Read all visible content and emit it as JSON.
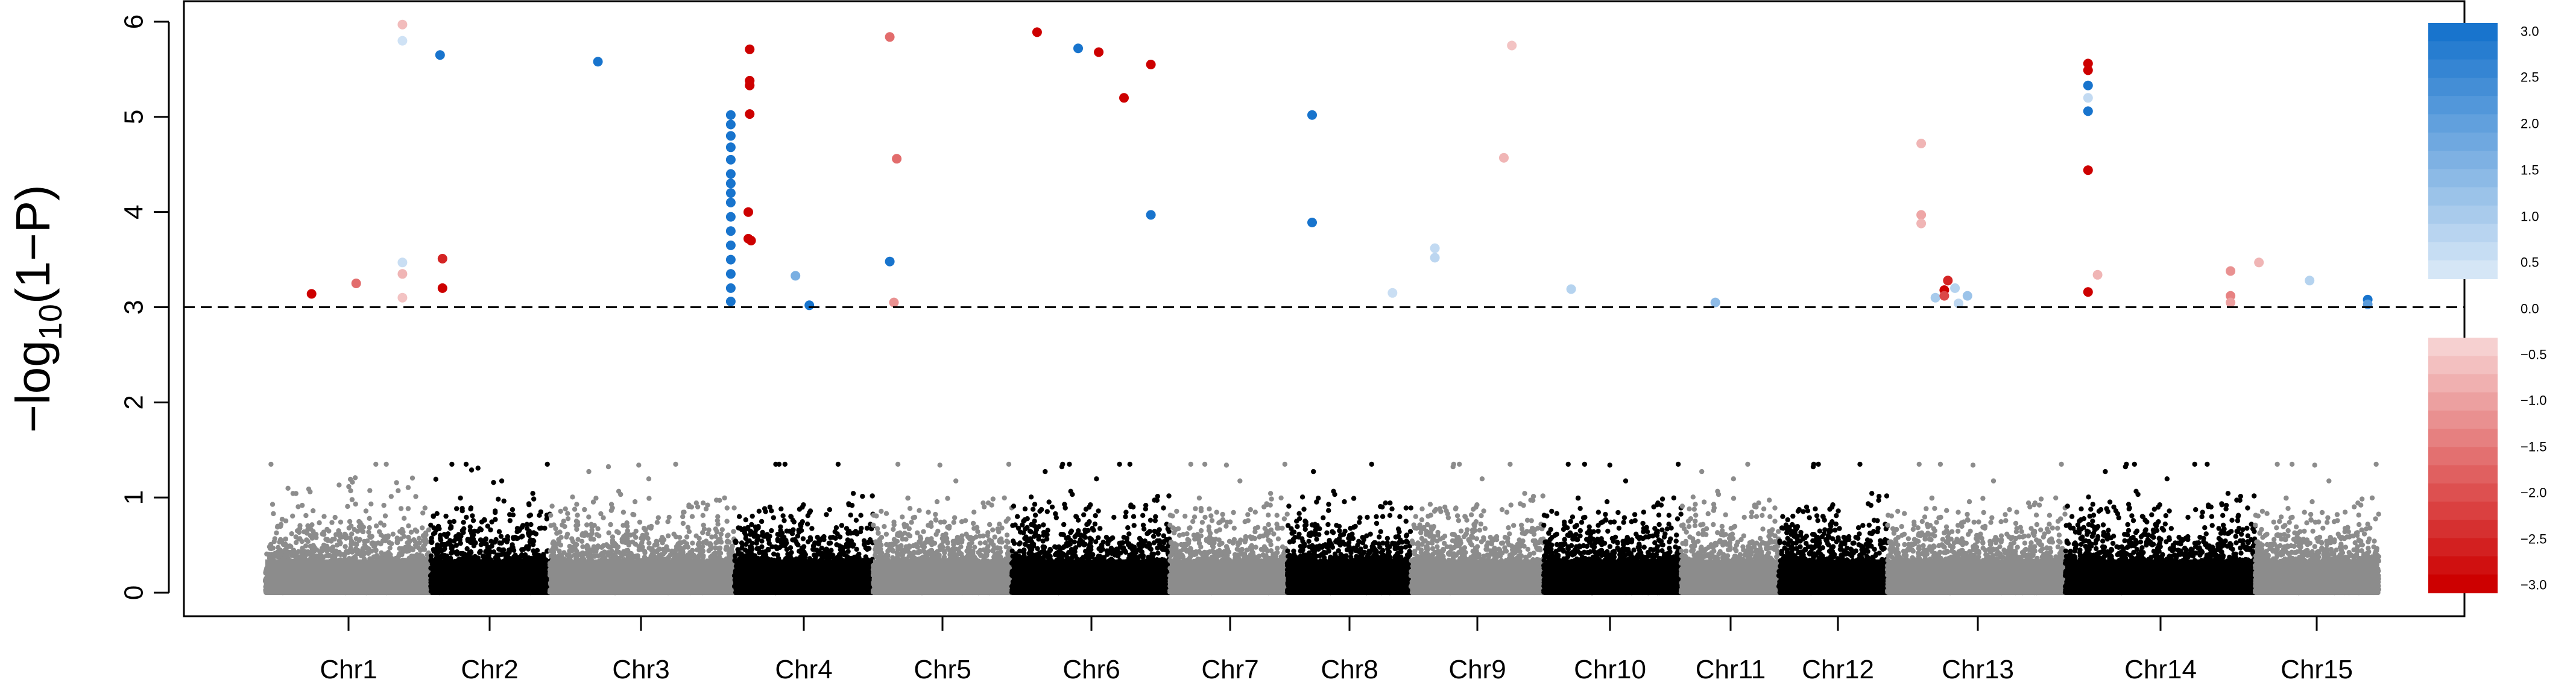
{
  "chart_data": {
    "type": "scatter",
    "title": "",
    "xlabel": "",
    "ylabel_main": "−log",
    "ylabel_sub": "10",
    "ylabel_tail": "(1−P)",
    "ylim": [
      0,
      6
    ],
    "yticks": [
      "0",
      "1",
      "2",
      "3",
      "4",
      "5",
      "6"
    ],
    "threshold": 3,
    "grid": false,
    "legend": "colorbar-right",
    "colors": {
      "chr_odd": "#8c8c8c",
      "chr_even": "#000000",
      "positive": "#1874cd",
      "negative": "#cd0000",
      "threshold_line": "#000000"
    },
    "colorbar": {
      "labels": [
        "3.0",
        "2.5",
        "2.0",
        "1.5",
        "1.0",
        "0.5",
        "0.0",
        "−0.5",
        "−1.0",
        "−1.5",
        "−2.0",
        "−2.5",
        "−3.0"
      ]
    },
    "chromosomes": [
      {
        "name": "Chr1",
        "start": 440,
        "end": 714,
        "tick": 578,
        "color": "odd",
        "max": 2.6
      },
      {
        "name": "Chr2",
        "start": 714,
        "end": 912,
        "tick": 812,
        "color": "even",
        "max": 2.8
      },
      {
        "name": "Chr3",
        "start": 912,
        "end": 1218,
        "tick": 1063,
        "color": "odd",
        "max": 2.6
      },
      {
        "name": "Chr4",
        "start": 1218,
        "end": 1448,
        "tick": 1333,
        "color": "even",
        "max": 2.9
      },
      {
        "name": "Chr5",
        "start": 1448,
        "end": 1678,
        "tick": 1563,
        "color": "odd",
        "max": 2.9
      },
      {
        "name": "Chr6",
        "start": 1678,
        "end": 1940,
        "tick": 1810,
        "color": "even",
        "max": 2.8
      },
      {
        "name": "Chr7",
        "start": 1940,
        "end": 2135,
        "tick": 2040,
        "color": "odd",
        "max": 2.6
      },
      {
        "name": "Chr8",
        "start": 2135,
        "end": 2340,
        "tick": 2238,
        "color": "even",
        "max": 2.8
      },
      {
        "name": "Chr9",
        "start": 2340,
        "end": 2560,
        "tick": 2450,
        "color": "odd",
        "max": 2.9
      },
      {
        "name": "Chr10",
        "start": 2560,
        "end": 2788,
        "tick": 2670,
        "color": "even",
        "max": 2.9
      },
      {
        "name": "Chr11",
        "start": 2788,
        "end": 2950,
        "tick": 2870,
        "color": "odd",
        "max": 2.9
      },
      {
        "name": "Chr12",
        "start": 2950,
        "end": 3130,
        "tick": 3048,
        "color": "even",
        "max": 2.9
      },
      {
        "name": "Chr13",
        "start": 3130,
        "end": 3425,
        "tick": 3280,
        "color": "odd",
        "max": 2.9
      },
      {
        "name": "Chr14",
        "start": 3425,
        "end": 3740,
        "tick": 3583,
        "color": "even",
        "max": 2.9
      },
      {
        "name": "Chr15",
        "start": 3740,
        "end": 3945,
        "tick": 3842,
        "color": "odd",
        "max": 2.7
      }
    ],
    "significant": [
      {
        "chr": "Chr1",
        "pos": 0.28,
        "y": 3.14,
        "effect": -3
      },
      {
        "chr": "Chr1",
        "pos": 0.55,
        "y": 3.25,
        "effect": -1.5
      },
      {
        "chr": "Chr1",
        "pos": 0.83,
        "y": 5.97,
        "effect": -0.4
      },
      {
        "chr": "Chr1",
        "pos": 0.83,
        "y": 5.8,
        "effect": 0.2
      },
      {
        "chr": "Chr1",
        "pos": 0.83,
        "y": 3.47,
        "effect": 0.3
      },
      {
        "chr": "Chr1",
        "pos": 0.83,
        "y": 3.35,
        "effect": -0.5
      },
      {
        "chr": "Chr1",
        "pos": 0.83,
        "y": 3.1,
        "effect": -0.3
      },
      {
        "chr": "Chr2",
        "pos": 0.08,
        "y": 5.65,
        "effect": 3
      },
      {
        "chr": "Chr2",
        "pos": 0.1,
        "y": 3.51,
        "effect": -2.5
      },
      {
        "chr": "Chr2",
        "pos": 0.1,
        "y": 3.2,
        "effect": -3
      },
      {
        "chr": "Chr3",
        "pos": 0.26,
        "y": 5.58,
        "effect": 3
      },
      {
        "chr": "Chr3",
        "pos": 0.98,
        "y": 5.02,
        "effect": 3
      },
      {
        "chr": "Chr3",
        "pos": 0.98,
        "y": 4.92,
        "effect": 3
      },
      {
        "chr": "Chr3",
        "pos": 0.98,
        "y": 4.8,
        "effect": 3
      },
      {
        "chr": "Chr3",
        "pos": 0.98,
        "y": 4.68,
        "effect": 3
      },
      {
        "chr": "Chr3",
        "pos": 0.98,
        "y": 4.55,
        "effect": 3
      },
      {
        "chr": "Chr3",
        "pos": 0.98,
        "y": 4.4,
        "effect": 3
      },
      {
        "chr": "Chr3",
        "pos": 0.98,
        "y": 4.3,
        "effect": 3
      },
      {
        "chr": "Chr3",
        "pos": 0.98,
        "y": 4.2,
        "effect": 3
      },
      {
        "chr": "Chr3",
        "pos": 0.98,
        "y": 4.1,
        "effect": 3
      },
      {
        "chr": "Chr3",
        "pos": 0.98,
        "y": 3.95,
        "effect": 3
      },
      {
        "chr": "Chr3",
        "pos": 0.98,
        "y": 3.8,
        "effect": 3
      },
      {
        "chr": "Chr3",
        "pos": 0.98,
        "y": 3.65,
        "effect": 3
      },
      {
        "chr": "Chr3",
        "pos": 0.98,
        "y": 3.5,
        "effect": 3
      },
      {
        "chr": "Chr3",
        "pos": 0.98,
        "y": 3.35,
        "effect": 3
      },
      {
        "chr": "Chr3",
        "pos": 0.98,
        "y": 3.2,
        "effect": 3
      },
      {
        "chr": "Chr3",
        "pos": 0.98,
        "y": 3.06,
        "effect": 3
      },
      {
        "chr": "Chr4",
        "pos": 0.11,
        "y": 5.71,
        "effect": -3
      },
      {
        "chr": "Chr4",
        "pos": 0.11,
        "y": 5.38,
        "effect": -3
      },
      {
        "chr": "Chr4",
        "pos": 0.11,
        "y": 5.33,
        "effect": -3
      },
      {
        "chr": "Chr4",
        "pos": 0.11,
        "y": 5.03,
        "effect": -3
      },
      {
        "chr": "Chr4",
        "pos": 0.1,
        "y": 4.0,
        "effect": -3
      },
      {
        "chr": "Chr4",
        "pos": 0.1,
        "y": 3.72,
        "effect": -3
      },
      {
        "chr": "Chr4",
        "pos": 0.12,
        "y": 3.7,
        "effect": -3
      },
      {
        "chr": "Chr4",
        "pos": 0.44,
        "y": 3.33,
        "effect": 1.5
      },
      {
        "chr": "Chr4",
        "pos": 0.54,
        "y": 3.02,
        "effect": 3
      },
      {
        "chr": "Chr5",
        "pos": 0.12,
        "y": 5.84,
        "effect": -1.5
      },
      {
        "chr": "Chr5",
        "pos": 0.17,
        "y": 4.56,
        "effect": -1.5
      },
      {
        "chr": "Chr5",
        "pos": 0.12,
        "y": 3.48,
        "effect": 3
      },
      {
        "chr": "Chr5",
        "pos": 0.15,
        "y": 3.05,
        "effect": -1
      },
      {
        "chr": "Chr6",
        "pos": 0.16,
        "y": 5.89,
        "effect": -3
      },
      {
        "chr": "Chr6",
        "pos": 0.42,
        "y": 5.72,
        "effect": 3
      },
      {
        "chr": "Chr6",
        "pos": 0.55,
        "y": 5.68,
        "effect": -3
      },
      {
        "chr": "Chr6",
        "pos": 0.71,
        "y": 5.2,
        "effect": -3
      },
      {
        "chr": "Chr6",
        "pos": 0.88,
        "y": 3.97,
        "effect": 3
      },
      {
        "chr": "Chr6",
        "pos": 0.88,
        "y": 5.55,
        "effect": -3
      },
      {
        "chr": "Chr8",
        "pos": 0.2,
        "y": 5.02,
        "effect": 3
      },
      {
        "chr": "Chr8",
        "pos": 0.2,
        "y": 3.89,
        "effect": 3
      },
      {
        "chr": "Chr8",
        "pos": 0.85,
        "y": 3.15,
        "effect": 0.3
      },
      {
        "chr": "Chr9",
        "pos": 0.18,
        "y": 3.62,
        "effect": 0.4
      },
      {
        "chr": "Chr9",
        "pos": 0.18,
        "y": 3.52,
        "effect": 0.5
      },
      {
        "chr": "Chr9",
        "pos": 0.76,
        "y": 5.75,
        "effect": -0.3
      },
      {
        "chr": "Chr9",
        "pos": 0.7,
        "y": 4.57,
        "effect": -0.5
      },
      {
        "chr": "Chr10",
        "pos": 0.2,
        "y": 3.19,
        "effect": 0.6
      },
      {
        "chr": "Chr11",
        "pos": 0.35,
        "y": 3.05,
        "effect": 1.2
      },
      {
        "chr": "Chr13",
        "pos": 0.19,
        "y": 4.72,
        "effect": -0.5
      },
      {
        "chr": "Chr13",
        "pos": 0.19,
        "y": 3.97,
        "effect": -0.7
      },
      {
        "chr": "Chr13",
        "pos": 0.19,
        "y": 3.88,
        "effect": -0.5
      },
      {
        "chr": "Chr13",
        "pos": 0.27,
        "y": 3.1,
        "effect": 0.8
      },
      {
        "chr": "Chr13",
        "pos": 0.32,
        "y": 3.18,
        "effect": -3
      },
      {
        "chr": "Chr13",
        "pos": 0.34,
        "y": 3.28,
        "effect": -2.5
      },
      {
        "chr": "Chr13",
        "pos": 0.32,
        "y": 3.12,
        "effect": -2
      },
      {
        "chr": "Chr13",
        "pos": 0.38,
        "y": 3.2,
        "effect": 0.6
      },
      {
        "chr": "Chr13",
        "pos": 0.4,
        "y": 3.04,
        "effect": 0.5
      },
      {
        "chr": "Chr13",
        "pos": 0.45,
        "y": 3.12,
        "effect": 1
      },
      {
        "chr": "Chr14",
        "pos": 0.12,
        "y": 5.56,
        "effect": -3
      },
      {
        "chr": "Chr14",
        "pos": 0.12,
        "y": 5.49,
        "effect": -3
      },
      {
        "chr": "Chr14",
        "pos": 0.12,
        "y": 5.33,
        "effect": 3
      },
      {
        "chr": "Chr14",
        "pos": 0.12,
        "y": 5.2,
        "effect": 0.4
      },
      {
        "chr": "Chr14",
        "pos": 0.12,
        "y": 5.06,
        "effect": 3
      },
      {
        "chr": "Chr14",
        "pos": 0.12,
        "y": 4.44,
        "effect": -3
      },
      {
        "chr": "Chr14",
        "pos": 0.12,
        "y": 3.16,
        "effect": -3
      },
      {
        "chr": "Chr14",
        "pos": 0.17,
        "y": 3.34,
        "effect": -0.5
      },
      {
        "chr": "Chr14",
        "pos": 0.87,
        "y": 3.38,
        "effect": -1
      },
      {
        "chr": "Chr14",
        "pos": 0.87,
        "y": 3.12,
        "effect": -1.2
      },
      {
        "chr": "Chr14",
        "pos": 0.87,
        "y": 3.05,
        "effect": -0.8
      },
      {
        "chr": "Chr15",
        "pos": 0.03,
        "y": 3.47,
        "effect": -0.5
      },
      {
        "chr": "Chr15",
        "pos": 0.44,
        "y": 3.28,
        "effect": 0.6
      },
      {
        "chr": "Chr15",
        "pos": 0.91,
        "y": 3.08,
        "effect": 3
      },
      {
        "chr": "Chr15",
        "pos": 0.91,
        "y": 3.03,
        "effect": 2
      }
    ]
  }
}
